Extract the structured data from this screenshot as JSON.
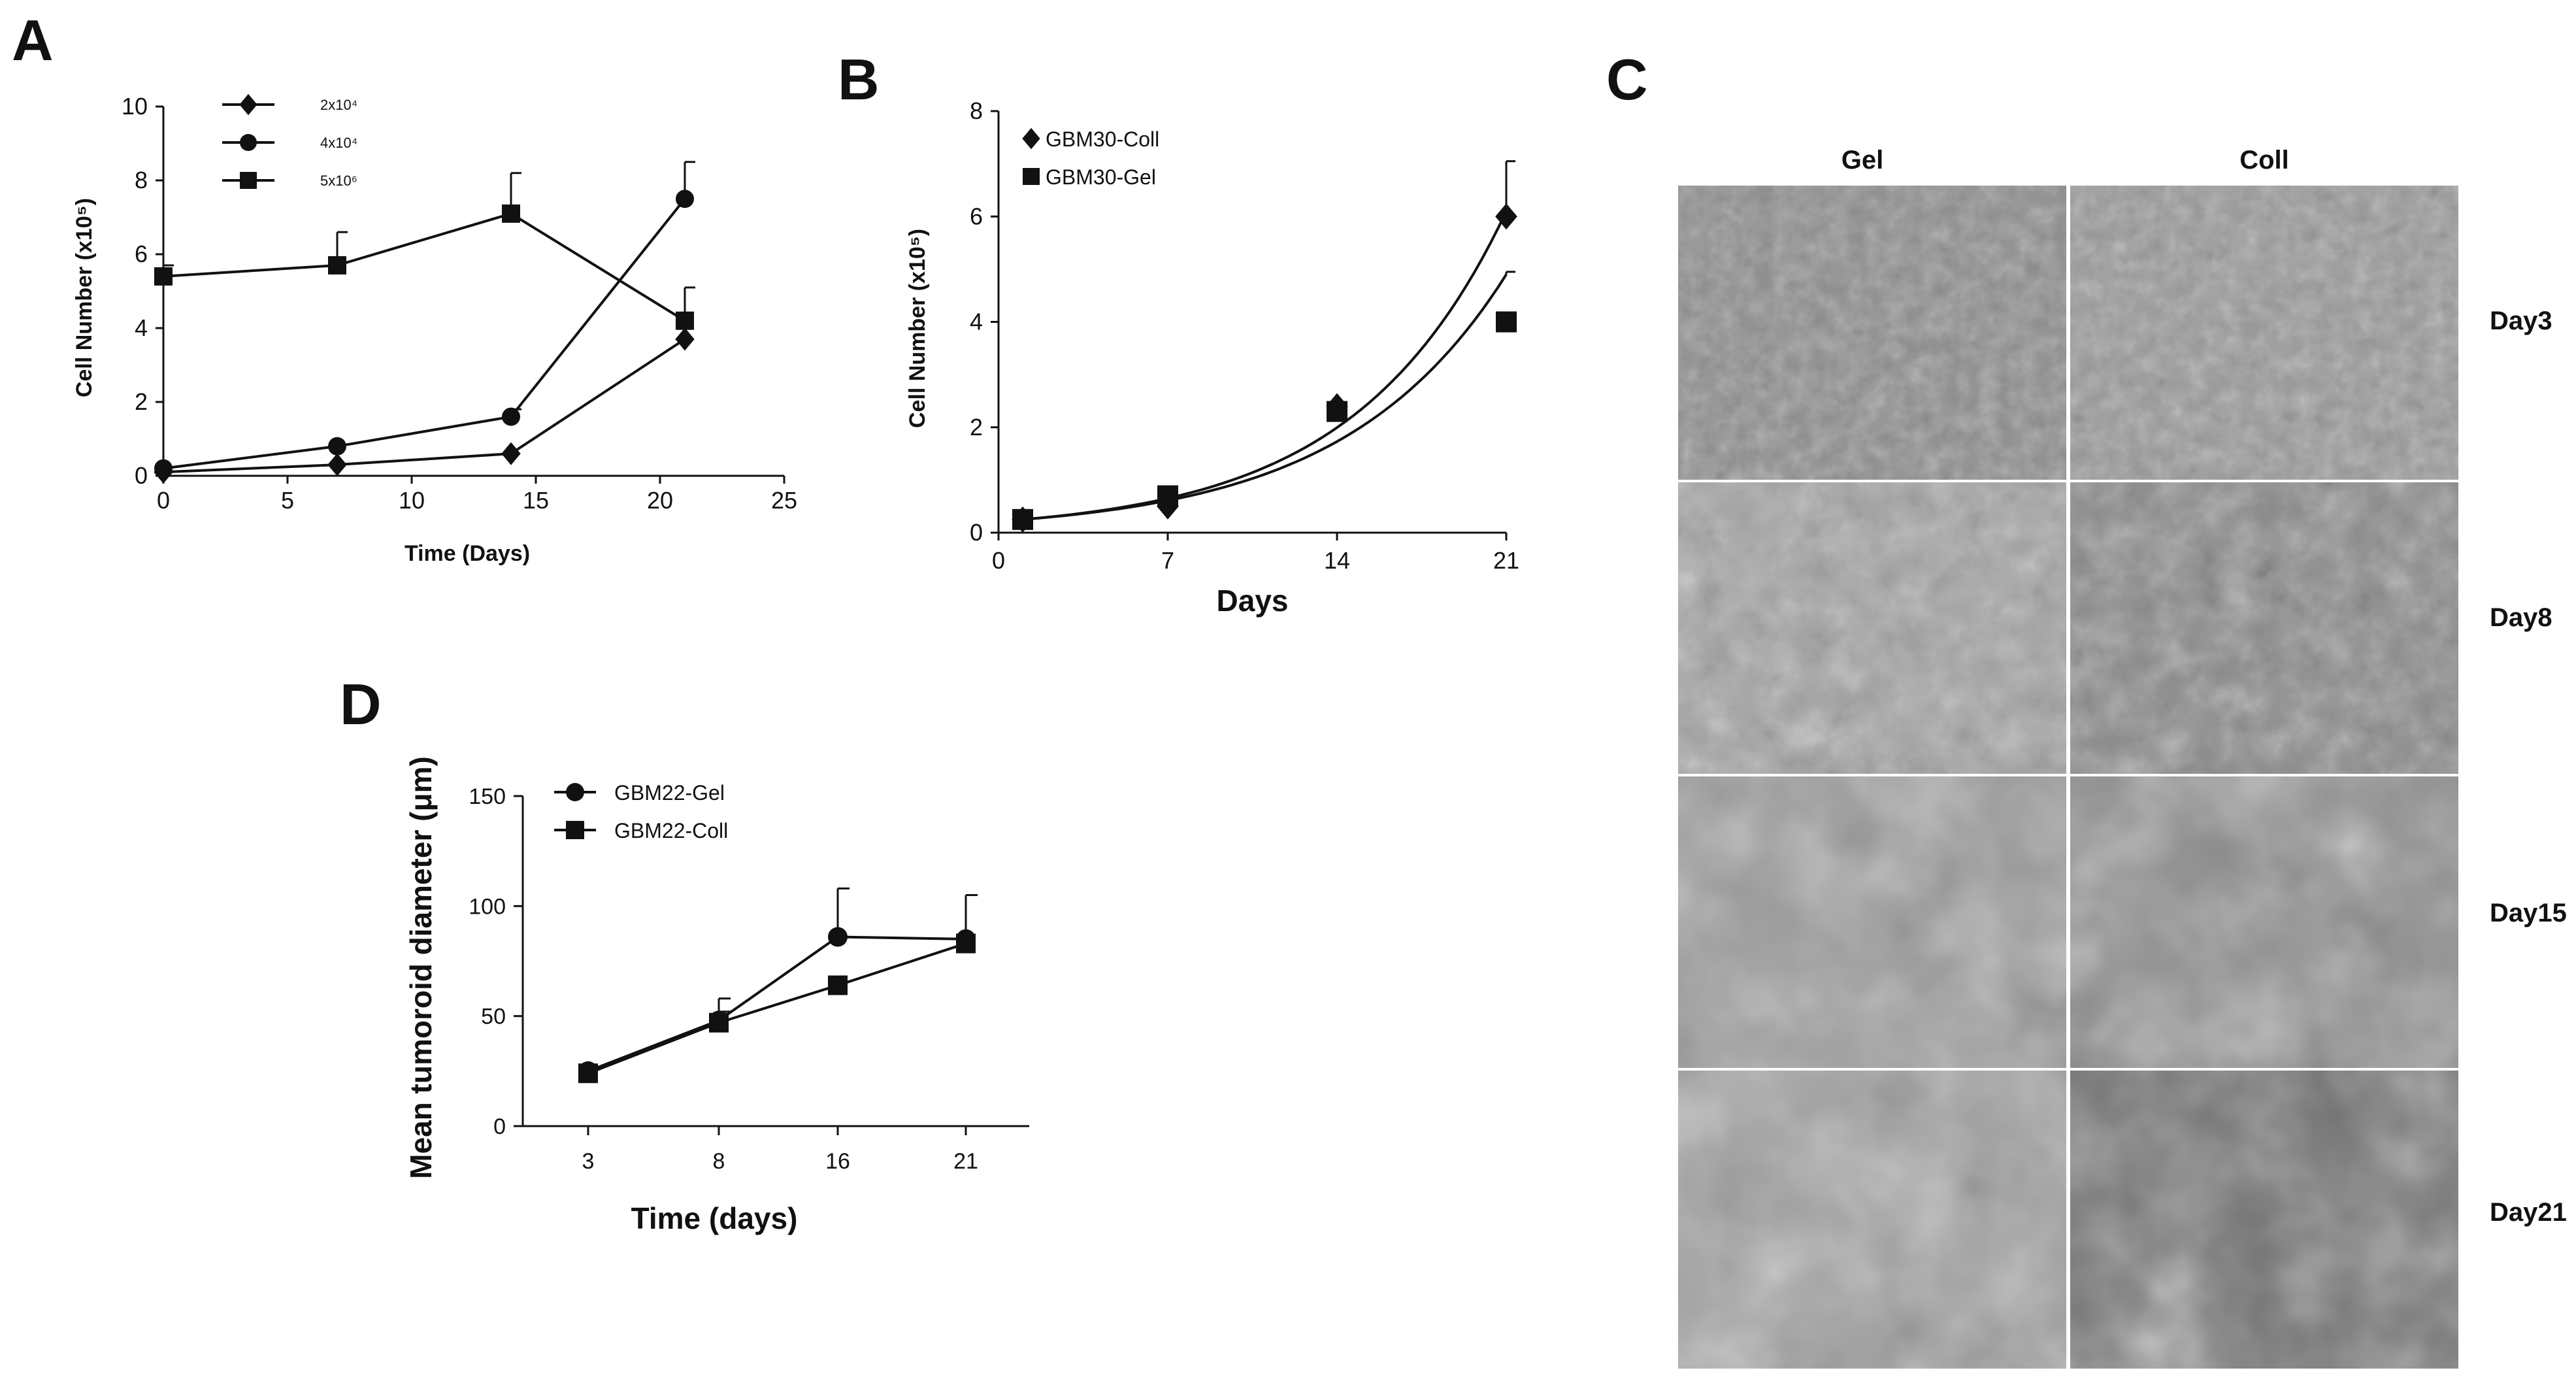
{
  "panels": {
    "A": "A",
    "B": "B",
    "C": "C",
    "D": "D"
  },
  "chart_data": [
    {
      "panel": "A",
      "type": "line",
      "title": "",
      "xlabel": "Time (Days)",
      "ylabel": "Cell Number (x10⁵)",
      "xlim": [
        0,
        25
      ],
      "ylim": [
        0,
        10
      ],
      "xticks": [
        0,
        5,
        10,
        15,
        20,
        25
      ],
      "yticks": [
        0,
        2,
        4,
        6,
        8,
        10
      ],
      "legend_position": "top-left",
      "series": [
        {
          "name": "2x10⁴",
          "marker": "diamond",
          "x": [
            0,
            7,
            14,
            21
          ],
          "y": [
            0.1,
            0.3,
            0.6,
            3.7
          ],
          "err": [
            0,
            0,
            0,
            0
          ]
        },
        {
          "name": "4x10⁴",
          "marker": "circle",
          "x": [
            0,
            7,
            14,
            21
          ],
          "y": [
            0.2,
            0.8,
            1.6,
            7.5
          ],
          "err": [
            0,
            0,
            0.2,
            1.0
          ]
        },
        {
          "name": "5x10⁶",
          "marker": "square",
          "x": [
            0,
            7,
            14,
            21
          ],
          "y": [
            5.4,
            5.7,
            7.1,
            4.2
          ],
          "err": [
            0.3,
            0.9,
            1.1,
            0.9
          ]
        }
      ]
    },
    {
      "panel": "B",
      "type": "scatter",
      "title": "",
      "xlabel": "Days",
      "ylabel": "Cell Number (x10⁵)",
      "xlim": [
        0,
        21
      ],
      "ylim": [
        0,
        8
      ],
      "xticks": [
        0,
        7,
        14,
        21
      ],
      "yticks": [
        0,
        2,
        4,
        6,
        8
      ],
      "legend_position": "top-left",
      "series": [
        {
          "name": "GBM30-Coll",
          "marker": "diamond",
          "x": [
            1,
            7,
            14,
            21
          ],
          "y": [
            0.25,
            0.5,
            2.4,
            6.0
          ],
          "fit": "exponential",
          "fit_end": 6.1,
          "err_top": 7.05
        },
        {
          "name": "GBM30-Gel",
          "marker": "square",
          "x": [
            1,
            7,
            14,
            21
          ],
          "y": [
            0.25,
            0.7,
            2.3,
            4.0
          ],
          "fit": "exponential",
          "fit_end": 4.9,
          "err_top": 4.95
        }
      ]
    },
    {
      "panel": "D",
      "type": "line",
      "title": "",
      "xlabel": "Time (days)",
      "ylabel": "Mean tumoroid diameter (μm)",
      "categories": [
        "3",
        "8",
        "16",
        "21"
      ],
      "ylim": [
        0,
        150
      ],
      "yticks": [
        0,
        50,
        100,
        150
      ],
      "legend_position": "top-left",
      "series": [
        {
          "name": "GBM22-Gel",
          "marker": "circle",
          "values": [
            25,
            48,
            86,
            85
          ],
          "err": [
            0,
            10,
            22,
            20
          ]
        },
        {
          "name": "GBM22-Coll",
          "marker": "square",
          "values": [
            24,
            47,
            64,
            83
          ],
          "err": [
            0,
            5,
            0,
            22
          ]
        }
      ]
    }
  ],
  "panel_c": {
    "columns": [
      "Gel",
      "Coll"
    ],
    "rows": [
      "Day3",
      "Day8",
      "Day15",
      "Day21"
    ]
  }
}
